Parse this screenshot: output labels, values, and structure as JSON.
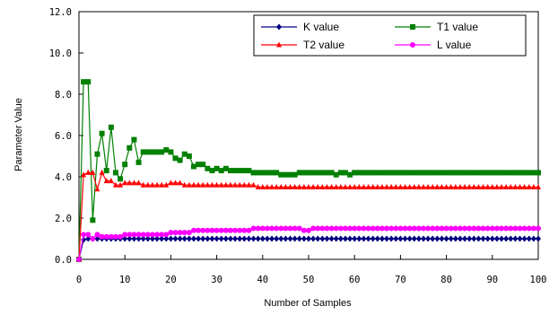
{
  "chart_data": {
    "type": "line",
    "xlabel": "Number of Samples",
    "ylabel": "Parameter Value",
    "xlim": [
      0,
      100
    ],
    "ylim": [
      0,
      12
    ],
    "xticks": [
      "0",
      "10",
      "20",
      "30",
      "40",
      "50",
      "60",
      "70",
      "80",
      "90",
      "100"
    ],
    "yticks": [
      "0.0",
      "2.0",
      "4.0",
      "6.0",
      "8.0",
      "10.0",
      "12.0"
    ],
    "grid": false,
    "legend_position": "top-right",
    "x": [
      0,
      1,
      2,
      3,
      4,
      5,
      6,
      7,
      8,
      9,
      10,
      11,
      12,
      13,
      14,
      15,
      16,
      17,
      18,
      19,
      20,
      21,
      22,
      23,
      24,
      25,
      26,
      27,
      28,
      29,
      30,
      31,
      32,
      33,
      34,
      35,
      36,
      37,
      38,
      39,
      40,
      41,
      42,
      43,
      44,
      45,
      46,
      47,
      48,
      49,
      50,
      51,
      52,
      53,
      54,
      55,
      56,
      57,
      58,
      59,
      60,
      61,
      62,
      63,
      64,
      65,
      66,
      67,
      68,
      69,
      70,
      71,
      72,
      73,
      74,
      75,
      76,
      77,
      78,
      79,
      80,
      81,
      82,
      83,
      84,
      85,
      86,
      87,
      88,
      89,
      90,
      91,
      92,
      93,
      94,
      95,
      96,
      97,
      98,
      99,
      100
    ],
    "series": [
      {
        "name": "K value",
        "color": "#000080",
        "marker": "diamond",
        "values": [
          0,
          0.95,
          1,
          1,
          1,
          1,
          1,
          1,
          1,
          1,
          1,
          1,
          1,
          1,
          1,
          1,
          1,
          1,
          1,
          1,
          1,
          1,
          1,
          1,
          1,
          1,
          1,
          1,
          1,
          1,
          1,
          1,
          1,
          1,
          1,
          1,
          1,
          1,
          1,
          1,
          1,
          1,
          1,
          1,
          1,
          1,
          1,
          1,
          1,
          1,
          1,
          1,
          1,
          1,
          1,
          1,
          1,
          1,
          1,
          1,
          1,
          1,
          1,
          1,
          1,
          1,
          1,
          1,
          1,
          1,
          1,
          1,
          1,
          1,
          1,
          1,
          1,
          1,
          1,
          1,
          1,
          1,
          1,
          1,
          1,
          1,
          1,
          1,
          1,
          1,
          1,
          1,
          1,
          1,
          1,
          1,
          1,
          1,
          1,
          1,
          1
        ]
      },
      {
        "name": "T1 value",
        "color": "#008000",
        "marker": "square",
        "values": [
          0,
          8.6,
          8.6,
          1.9,
          5.1,
          6.1,
          4.3,
          6.4,
          4.2,
          3.9,
          4.6,
          5.4,
          5.8,
          4.7,
          5.2,
          5.2,
          5.2,
          5.2,
          5.2,
          5.3,
          5.2,
          4.9,
          4.8,
          5.1,
          5.0,
          4.5,
          4.6,
          4.6,
          4.4,
          4.3,
          4.4,
          4.3,
          4.4,
          4.3,
          4.3,
          4.3,
          4.3,
          4.3,
          4.2,
          4.2,
          4.2,
          4.2,
          4.2,
          4.2,
          4.1,
          4.1,
          4.1,
          4.1,
          4.2,
          4.2,
          4.2,
          4.2,
          4.2,
          4.2,
          4.2,
          4.2,
          4.1,
          4.2,
          4.2,
          4.1,
          4.2,
          4.2,
          4.2,
          4.2,
          4.2,
          4.2,
          4.2,
          4.2,
          4.2,
          4.2,
          4.2,
          4.2,
          4.2,
          4.2,
          4.2,
          4.2,
          4.2,
          4.2,
          4.2,
          4.2,
          4.2,
          4.2,
          4.2,
          4.2,
          4.2,
          4.2,
          4.2,
          4.2,
          4.2,
          4.2,
          4.2,
          4.2,
          4.2,
          4.2,
          4.2,
          4.2,
          4.2,
          4.2,
          4.2,
          4.2,
          4.2
        ]
      },
      {
        "name": "T2 value",
        "color": "#ff0000",
        "marker": "triangle",
        "values": [
          0,
          4.1,
          4.2,
          4.2,
          3.4,
          4.2,
          3.8,
          3.8,
          3.6,
          3.6,
          3.7,
          3.7,
          3.7,
          3.7,
          3.6,
          3.6,
          3.6,
          3.6,
          3.6,
          3.6,
          3.7,
          3.7,
          3.7,
          3.6,
          3.6,
          3.6,
          3.6,
          3.6,
          3.6,
          3.6,
          3.6,
          3.6,
          3.6,
          3.6,
          3.6,
          3.6,
          3.6,
          3.6,
          3.6,
          3.5,
          3.5,
          3.5,
          3.5,
          3.5,
          3.5,
          3.5,
          3.5,
          3.5,
          3.5,
          3.5,
          3.5,
          3.5,
          3.5,
          3.5,
          3.5,
          3.5,
          3.5,
          3.5,
          3.5,
          3.5,
          3.5,
          3.5,
          3.5,
          3.5,
          3.5,
          3.5,
          3.5,
          3.5,
          3.5,
          3.5,
          3.5,
          3.5,
          3.5,
          3.5,
          3.5,
          3.5,
          3.5,
          3.5,
          3.5,
          3.5,
          3.5,
          3.5,
          3.5,
          3.5,
          3.5,
          3.5,
          3.5,
          3.5,
          3.5,
          3.5,
          3.5,
          3.5,
          3.5,
          3.5,
          3.5,
          3.5,
          3.5,
          3.5,
          3.5,
          3.5,
          3.5
        ]
      },
      {
        "name": "L value",
        "color": "#ff00ff",
        "marker": "circle",
        "values": [
          0,
          1.2,
          1.2,
          1.0,
          1.2,
          1.1,
          1.1,
          1.1,
          1.1,
          1.1,
          1.2,
          1.2,
          1.2,
          1.2,
          1.2,
          1.2,
          1.2,
          1.2,
          1.2,
          1.2,
          1.3,
          1.3,
          1.3,
          1.3,
          1.3,
          1.4,
          1.4,
          1.4,
          1.4,
          1.4,
          1.4,
          1.4,
          1.4,
          1.4,
          1.4,
          1.4,
          1.4,
          1.4,
          1.5,
          1.5,
          1.5,
          1.5,
          1.5,
          1.5,
          1.5,
          1.5,
          1.5,
          1.5,
          1.5,
          1.4,
          1.4,
          1.5,
          1.5,
          1.5,
          1.5,
          1.5,
          1.5,
          1.5,
          1.5,
          1.5,
          1.5,
          1.5,
          1.5,
          1.5,
          1.5,
          1.5,
          1.5,
          1.5,
          1.5,
          1.5,
          1.5,
          1.5,
          1.5,
          1.5,
          1.5,
          1.5,
          1.5,
          1.5,
          1.5,
          1.5,
          1.5,
          1.5,
          1.5,
          1.5,
          1.5,
          1.5,
          1.5,
          1.5,
          1.5,
          1.5,
          1.5,
          1.5,
          1.5,
          1.5,
          1.5,
          1.5,
          1.5,
          1.5,
          1.5,
          1.5,
          1.5
        ]
      }
    ]
  }
}
